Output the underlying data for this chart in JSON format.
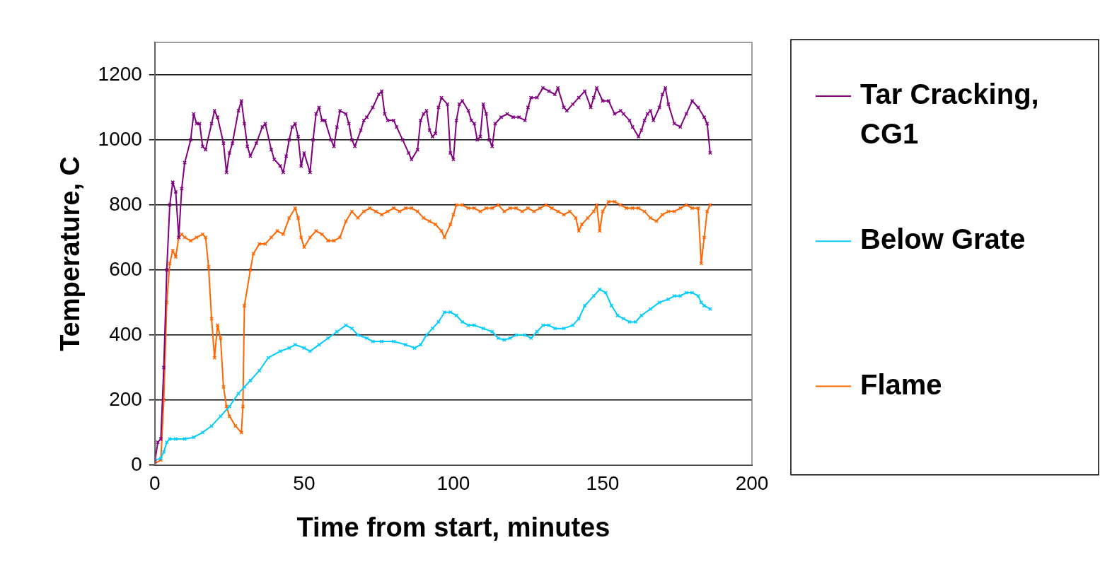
{
  "chart_data": {
    "type": "line",
    "xlabel": "Time from start, minutes",
    "ylabel": "Temperature, C",
    "xlim": [
      0,
      200
    ],
    "xticks": [
      0,
      50,
      100,
      150,
      200
    ],
    "ylim": [
      0,
      1300
    ],
    "yticks": [
      0,
      200,
      400,
      600,
      800,
      1000,
      1200
    ],
    "grid": "y",
    "legend": "right",
    "marker": "cross",
    "line_style": "solid",
    "series": [
      {
        "name": "Tar Cracking, CG1",
        "color": "#800080",
        "x": [
          0,
          1,
          2,
          3,
          4,
          5,
          6,
          7,
          8,
          9,
          10,
          12,
          13,
          14,
          15,
          16,
          17,
          19,
          20,
          21,
          23,
          24,
          25,
          26,
          28,
          29,
          30,
          31,
          32,
          34,
          36,
          37,
          39,
          40,
          42,
          43,
          44,
          45,
          46,
          47,
          48,
          49,
          50,
          52,
          53,
          54,
          55,
          56,
          57,
          59,
          60,
          61,
          62,
          64,
          65,
          66,
          67,
          69,
          70,
          71,
          73,
          75,
          76,
          77,
          78,
          80,
          81,
          83,
          85,
          86,
          88,
          89,
          90,
          91,
          92,
          93,
          94,
          95,
          96,
          98,
          99,
          100,
          101,
          102,
          103,
          105,
          106,
          107,
          108,
          109,
          110,
          111,
          112,
          113,
          114,
          116,
          118,
          120,
          122,
          124,
          125,
          126,
          128,
          130,
          132,
          134,
          135,
          137,
          138,
          140,
          142,
          144,
          146,
          147,
          148,
          150,
          152,
          154,
          156,
          157,
          159,
          160,
          162,
          163,
          164,
          165,
          166,
          167,
          169,
          170,
          171,
          172,
          174,
          176,
          178,
          180,
          182,
          184,
          185,
          186
        ],
        "values": [
          10,
          70,
          80,
          300,
          600,
          800,
          870,
          840,
          700,
          850,
          930,
          1000,
          1080,
          1050,
          1050,
          980,
          970,
          1050,
          1090,
          1070,
          990,
          900,
          960,
          990,
          1090,
          1120,
          1050,
          980,
          950,
          990,
          1040,
          1050,
          970,
          940,
          920,
          900,
          950,
          1000,
          1040,
          1050,
          1010,
          920,
          960,
          900,
          1000,
          1080,
          1100,
          1060,
          1060,
          1000,
          980,
          1040,
          1090,
          1080,
          1050,
          1000,
          980,
          1030,
          1060,
          1070,
          1100,
          1140,
          1150,
          1080,
          1060,
          1060,
          1040,
          1000,
          960,
          940,
          970,
          1060,
          1080,
          1090,
          1030,
          1010,
          1020,
          1100,
          1130,
          1110,
          960,
          940,
          1060,
          1110,
          1120,
          1090,
          1060,
          1050,
          1000,
          1010,
          1110,
          1080,
          1000,
          980,
          1050,
          1070,
          1080,
          1070,
          1070,
          1060,
          1100,
          1130,
          1130,
          1160,
          1150,
          1140,
          1160,
          1100,
          1090,
          1110,
          1130,
          1150,
          1100,
          1130,
          1160,
          1120,
          1120,
          1080,
          1090,
          1080,
          1060,
          1040,
          1010,
          1030,
          1060,
          1080,
          1090,
          1060,
          1100,
          1140,
          1160,
          1110,
          1050,
          1040,
          1080,
          1120,
          1100,
          1070,
          1050,
          960
        ]
      },
      {
        "name": "Below Grate",
        "color": "#00ccff",
        "x": [
          0,
          2,
          3,
          4,
          5,
          7,
          10,
          13,
          16,
          19,
          22,
          25,
          28,
          30,
          32,
          35,
          38,
          42,
          45,
          47,
          50,
          52,
          55,
          58,
          61,
          64,
          66,
          68,
          71,
          73,
          76,
          80,
          84,
          87,
          89,
          91,
          93,
          95,
          97,
          99,
          101,
          103,
          105,
          107,
          110,
          113,
          115,
          117,
          119,
          121,
          124,
          126,
          128,
          130,
          132,
          134,
          137,
          140,
          142,
          144,
          147,
          149,
          151,
          153,
          155,
          157,
          159,
          161,
          163,
          166,
          169,
          172,
          174,
          176,
          178,
          180,
          182,
          183,
          184,
          186
        ],
        "values": [
          15,
          20,
          40,
          70,
          80,
          80,
          80,
          85,
          100,
          120,
          150,
          180,
          220,
          240,
          260,
          290,
          330,
          350,
          360,
          370,
          360,
          350,
          370,
          390,
          410,
          430,
          420,
          400,
          390,
          380,
          380,
          380,
          370,
          360,
          370,
          400,
          420,
          440,
          470,
          470,
          460,
          440,
          430,
          430,
          420,
          410,
          390,
          385,
          390,
          400,
          400,
          390,
          410,
          430,
          430,
          420,
          420,
          430,
          450,
          490,
          520,
          540,
          530,
          490,
          460,
          450,
          440,
          440,
          460,
          480,
          500,
          510,
          520,
          520,
          530,
          530,
          520,
          500,
          490,
          480
        ]
      },
      {
        "name": "Flame",
        "color": "#ff6600",
        "x": [
          0,
          2,
          3,
          4,
          5,
          6,
          7,
          8,
          9,
          10,
          12,
          14,
          16,
          17,
          18,
          19,
          20,
          21,
          22,
          23,
          24,
          25,
          27,
          29,
          29.5,
          30,
          32,
          33,
          35,
          37,
          39,
          41,
          43,
          45,
          47,
          48,
          49,
          50,
          52,
          54,
          56,
          58,
          60,
          62,
          64,
          66,
          68,
          70,
          72,
          74,
          76,
          78,
          80,
          82,
          84,
          86,
          88,
          90,
          92,
          94,
          96,
          97,
          99,
          100,
          101,
          103,
          105,
          107,
          109,
          111,
          113,
          115,
          117,
          119,
          121,
          123,
          125,
          127,
          129,
          131,
          133,
          135,
          137,
          139,
          141,
          142,
          143,
          145,
          147,
          148,
          149,
          150,
          152,
          154,
          156,
          158,
          160,
          162,
          164,
          166,
          168,
          170,
          172,
          174,
          176,
          178,
          180,
          182,
          183,
          184,
          185,
          186
        ],
        "values": [
          5,
          15,
          200,
          500,
          620,
          660,
          640,
          700,
          710,
          700,
          690,
          700,
          710,
          700,
          610,
          450,
          330,
          430,
          390,
          240,
          180,
          150,
          120,
          100,
          180,
          490,
          600,
          650,
          680,
          680,
          700,
          720,
          710,
          760,
          790,
          760,
          700,
          670,
          700,
          720,
          710,
          690,
          690,
          700,
          750,
          780,
          760,
          780,
          790,
          780,
          770,
          780,
          790,
          780,
          790,
          790,
          780,
          760,
          750,
          740,
          720,
          700,
          740,
          770,
          800,
          800,
          790,
          790,
          780,
          790,
          790,
          800,
          780,
          790,
          790,
          780,
          790,
          780,
          790,
          800,
          790,
          780,
          770,
          780,
          760,
          720,
          740,
          760,
          780,
          800,
          720,
          780,
          810,
          810,
          800,
          790,
          790,
          790,
          780,
          760,
          750,
          770,
          780,
          780,
          790,
          800,
          790,
          790,
          620,
          700,
          780,
          800
        ]
      }
    ]
  }
}
